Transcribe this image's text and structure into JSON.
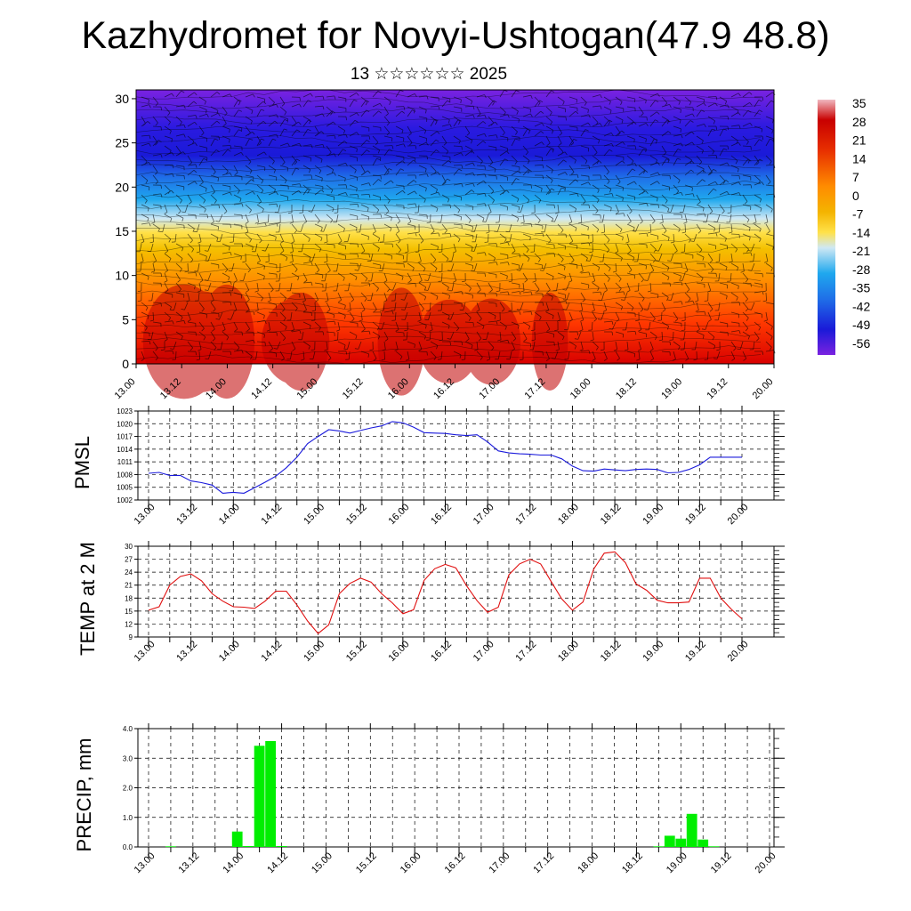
{
  "title": "Kazhydromet for Novyi-Ushtogan(47.9 48.8)",
  "subtitle": "13 ☆☆☆☆☆☆ 2025",
  "chart_data": [
    {
      "type": "heatmap",
      "description_panel": "vertical cross-section",
      "x_tick_labels": [
        "13.00",
        "13.12",
        "14.00",
        "14.12",
        "15.00",
        "15.12",
        "16.00",
        "16.12",
        "17.00",
        "17.12",
        "18.00",
        "18.12",
        "19.00",
        "19.12",
        "20.00"
      ],
      "y_tick_labels": [
        "0",
        "5",
        "10",
        "15",
        "20",
        "25",
        "30"
      ],
      "ylim": [
        0,
        31
      ],
      "colorbar_labels": [
        "35",
        "28",
        "21",
        "14",
        "7",
        "0",
        "-7",
        "-14",
        "-21",
        "-28",
        "-35",
        "-42",
        "-49",
        "-56"
      ],
      "colorbar_range": [
        -63,
        42
      ],
      "colors": {
        "hot": "#d80000",
        "warm": "#ff8c00",
        "neutral": "#ffe14a",
        "pale": "#cfe8f4",
        "cool": "#1f8fe8",
        "cold": "#1a1ad8",
        "coldest": "#7a22e0"
      },
      "temperature_profile": [
        {
          "level": 0,
          "value": 35
        },
        {
          "level": 5,
          "value": 21
        },
        {
          "level": 10,
          "value": 7
        },
        {
          "level": 13,
          "value": 0
        },
        {
          "level": 15,
          "value": -10
        },
        {
          "level": 17,
          "value": -21
        },
        {
          "level": 20,
          "value": -35
        },
        {
          "level": 23,
          "value": -49
        },
        {
          "level": 25,
          "value": -56
        },
        {
          "level": 31,
          "value": -63
        }
      ]
    },
    {
      "type": "line",
      "ylabel": "PMSL",
      "x_tick_labels": [
        "13.00",
        "13.12",
        "14.00",
        "14.12",
        "15.00",
        "15.12",
        "16.00",
        "16.12",
        "17.00",
        "17.12",
        "18.00",
        "18.12",
        "19.00",
        "19.12",
        "20.00"
      ],
      "y_tick_labels": [
        "1002",
        "1005",
        "1008",
        "1011",
        "1014",
        "1017",
        "1020",
        "1023"
      ],
      "ylim": [
        1002,
        1023
      ],
      "color": "#1a1adc",
      "x": [
        0,
        3,
        6,
        9,
        12,
        15,
        18,
        21,
        24,
        27,
        30,
        33,
        36,
        39,
        42,
        45,
        48,
        51,
        54,
        57,
        60,
        63,
        66,
        69,
        72,
        75,
        78,
        81,
        84,
        87,
        90,
        93,
        96,
        99,
        102,
        105,
        108,
        111,
        114,
        117,
        120,
        123,
        126,
        129,
        132,
        135,
        138,
        141,
        144,
        147,
        150,
        153,
        156,
        159,
        162,
        165,
        168
      ],
      "values": [
        1008.3,
        1008.5,
        1007.8,
        1007.8,
        1006.5,
        1006.1,
        1005.5,
        1003.6,
        1003.8,
        1003.6,
        1004.9,
        1006.2,
        1007.6,
        1009.6,
        1012.1,
        1015.3,
        1017.0,
        1018.6,
        1018.3,
        1017.8,
        1018.4,
        1019.0,
        1019.5,
        1020.5,
        1020.2,
        1019.2,
        1017.9,
        1017.8,
        1017.7,
        1017.4,
        1017.2,
        1017.4,
        1015.7,
        1013.6,
        1013.1,
        1012.9,
        1012.8,
        1012.6,
        1012.6,
        1011.7,
        1010.0,
        1008.9,
        1008.8,
        1009.3,
        1009.1,
        1008.9,
        1009.2,
        1009.3,
        1009.2,
        1008.4,
        1008.5,
        1009.2,
        1010.3,
        1012.1,
        1012.1,
        1012.1,
        1012.1
      ]
    },
    {
      "type": "line",
      "ylabel": "TEMP at 2 M",
      "x_tick_labels": [
        "13.00",
        "13.12",
        "14.00",
        "14.12",
        "15.00",
        "15.12",
        "16.00",
        "16.12",
        "17.00",
        "17.12",
        "18.00",
        "18.12",
        "19.00",
        "19.12",
        "20.00"
      ],
      "y_tick_labels": [
        "9",
        "12",
        "15",
        "18",
        "21",
        "24",
        "27",
        "30"
      ],
      "ylim": [
        9,
        30
      ],
      "color": "#e01010",
      "x": [
        0,
        3,
        6,
        9,
        12,
        15,
        18,
        21,
        24,
        27,
        30,
        33,
        36,
        39,
        42,
        45,
        48,
        51,
        54,
        57,
        60,
        63,
        66,
        69,
        72,
        75,
        78,
        81,
        84,
        87,
        90,
        93,
        96,
        99,
        102,
        105,
        108,
        111,
        114,
        117,
        120,
        123,
        126,
        129,
        132,
        135,
        138,
        141,
        144,
        147,
        150,
        153,
        156,
        159,
        162,
        165,
        168
      ],
      "values": [
        15.2,
        16.0,
        21.0,
        23.0,
        23.6,
        22.0,
        19.0,
        17.3,
        16.0,
        15.9,
        15.6,
        17.3,
        19.6,
        19.6,
        16.4,
        12.7,
        9.8,
        11.8,
        19.0,
        21.4,
        22.6,
        21.7,
        19.0,
        16.9,
        14.4,
        15.3,
        22.1,
        24.8,
        25.8,
        25.0,
        20.9,
        17.4,
        14.7,
        15.9,
        23.4,
        25.9,
        27.0,
        25.9,
        21.8,
        17.8,
        15.2,
        17.1,
        24.7,
        28.4,
        28.7,
        26.2,
        21.3,
        19.8,
        17.5,
        16.9,
        16.9,
        17.1,
        22.6,
        22.6,
        18.0,
        15.4,
        13.2
      ]
    },
    {
      "type": "bar",
      "ylabel": "PRECIP, mm",
      "x_tick_labels": [
        "13.00",
        "13.12",
        "14.00",
        "14.12",
        "15.00",
        "15.12",
        "16.00",
        "16.12",
        "17.00",
        "17.12",
        "18.00",
        "18.12",
        "19.00",
        "19.12",
        "20.00"
      ],
      "y_tick_labels": [
        "0.0",
        "1.0",
        "2.0",
        "3.0",
        "4.0"
      ],
      "ylim": [
        0,
        4
      ],
      "color": "#00ee00",
      "x": [
        6,
        24,
        27,
        30,
        33,
        36,
        138,
        141,
        144,
        147,
        150,
        153
      ],
      "values": [
        0.02,
        0.52,
        0.03,
        3.42,
        3.58,
        0.03,
        0.02,
        0.38,
        0.28,
        1.12,
        0.25,
        0.02
      ]
    }
  ]
}
